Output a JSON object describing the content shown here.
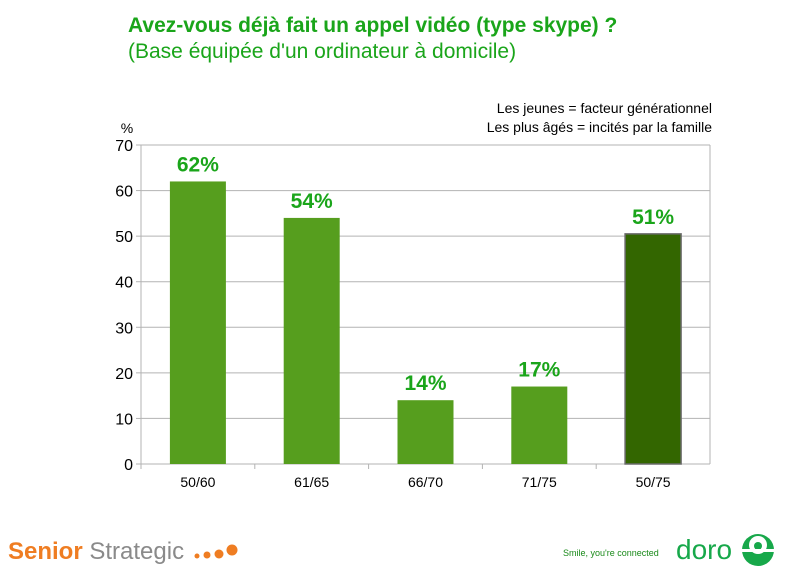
{
  "title": "Avez-vous déjà fait un appel vidéo (type skype)  ?",
  "subtitle": "(Base équipée d'un ordinateur à domicile)",
  "notes": [
    "Les jeunes = facteur générationnel",
    "Les plus âgés = incités par la famille"
  ],
  "chart_data": {
    "type": "bar",
    "categories": [
      "50/60",
      "61/65",
      "66/70",
      "71/75",
      "50/75"
    ],
    "values": [
      62,
      54,
      14,
      17,
      50.5
    ],
    "labels": [
      "62%",
      "54%",
      "14%",
      "17%",
      "51%"
    ],
    "ylabel": "%",
    "ylim": [
      0,
      70
    ],
    "yticks": [
      "0",
      "10",
      "20",
      "30",
      "40",
      "50",
      "60",
      "70"
    ],
    "grid": true,
    "colors": [
      "#569e1e",
      "#569e1e",
      "#569e1e",
      "#569e1e",
      "#336600"
    ],
    "label_color": "#1aa51a"
  },
  "footer": {
    "brand_bold": "Senior",
    "brand_rest": "Strategic",
    "tagline": "Smile, you're connected",
    "logo": "doro"
  }
}
